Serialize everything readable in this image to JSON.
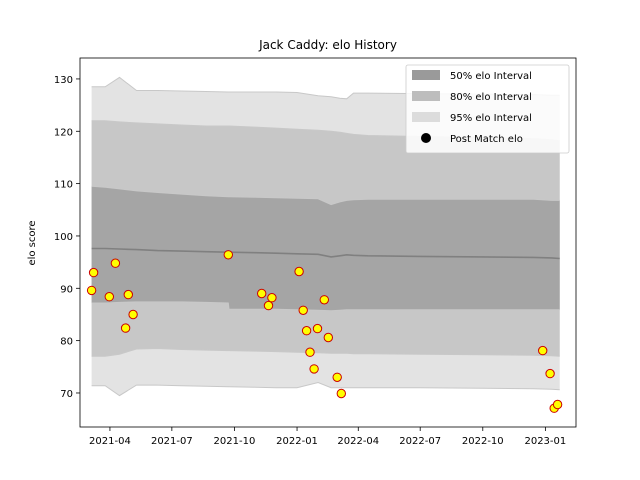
{
  "chart_data": {
    "type": "scatter",
    "title": "Jack Caddy: elo History",
    "xlabel": "",
    "ylabel": "elo score",
    "x_range": [
      "2021-02-16",
      "2023-02-15"
    ],
    "ylim": [
      63.5,
      134
    ],
    "y_ticks": [
      70,
      80,
      90,
      100,
      110,
      120,
      130
    ],
    "x_ticks": [
      "2021-04",
      "2021-07",
      "2021-10",
      "2022-01",
      "2022-04",
      "2022-07",
      "2022-10",
      "2023-01"
    ],
    "grid": false,
    "legend_position": "top-right",
    "legend": [
      "50% elo Interval",
      "80% elo Interval",
      "95% elo Interval",
      "Post Match elo"
    ],
    "colors": {
      "band50": "#9a9a9a",
      "band80": "#bdbdbd",
      "band95": "#dcdcdc",
      "mean_line": "#808080",
      "marker_face": "#ffff00",
      "marker_edge": "#cc0000"
    },
    "intervals": {
      "dates": [
        "2021-03-05",
        "2021-03-25",
        "2021-04-15",
        "2021-05-10",
        "2021-06-10",
        "2021-07-15",
        "2021-08-20",
        "2021-09-22",
        "2021-09-23",
        "2021-11-01",
        "2021-12-01",
        "2022-01-01",
        "2022-02-01",
        "2022-02-20",
        "2022-03-05",
        "2022-03-15",
        "2022-03-25",
        "2022-04-15",
        "2022-07-01",
        "2022-10-01",
        "2022-12-15",
        "2023-01-10",
        "2023-01-22"
      ],
      "mean": [
        97.6,
        97.6,
        97.5,
        97.4,
        97.2,
        97.1,
        97.0,
        96.9,
        96.9,
        96.8,
        96.7,
        96.6,
        96.5,
        96.0,
        96.2,
        96.4,
        96.3,
        96.2,
        96.1,
        96.0,
        95.9,
        95.8,
        95.7
      ],
      "lo50": [
        87.2,
        87.2,
        87.3,
        87.4,
        87.4,
        87.4,
        87.3,
        87.2,
        86.0,
        86.0,
        86.0,
        85.9,
        85.8,
        85.7,
        85.8,
        85.9,
        85.9,
        85.9,
        85.9,
        85.9,
        85.9,
        85.9,
        85.9
      ],
      "hi50": [
        109.5,
        109.3,
        109.0,
        108.6,
        108.3,
        108.0,
        107.7,
        107.5,
        107.5,
        107.4,
        107.3,
        107.2,
        107.1,
        106.0,
        106.5,
        106.8,
        106.9,
        107.0,
        107.0,
        107.0,
        107.0,
        106.8,
        106.8
      ],
      "lo80": [
        77.0,
        77.0,
        77.4,
        78.4,
        78.5,
        78.3,
        78.2,
        78.1,
        78.1,
        78.0,
        77.9,
        77.8,
        77.7,
        77.6,
        77.6,
        77.6,
        77.5,
        77.5,
        77.4,
        77.3,
        77.2,
        77.1,
        77.0
      ],
      "hi80": [
        122.0,
        122.0,
        121.8,
        121.6,
        121.4,
        121.2,
        121.0,
        121.0,
        121.0,
        120.8,
        120.6,
        120.4,
        120.2,
        120.0,
        119.8,
        119.6,
        119.4,
        119.2,
        119.0,
        118.8,
        118.6,
        118.4,
        118.2
      ],
      "lo95": [
        71.4,
        71.4,
        69.5,
        71.5,
        71.5,
        71.4,
        71.3,
        71.2,
        71.2,
        71.1,
        71.0,
        71.0,
        72.0,
        71.0,
        71.0,
        71.0,
        71.0,
        71.0,
        71.0,
        70.9,
        70.8,
        70.7,
        70.6
      ],
      "hi95": [
        128.5,
        128.5,
        130.3,
        127.8,
        127.8,
        127.7,
        127.6,
        127.5,
        127.5,
        127.5,
        127.5,
        127.4,
        126.8,
        126.6,
        126.3,
        126.2,
        127.3,
        127.3,
        127.2,
        127.1,
        127.0,
        126.9,
        126.9
      ]
    },
    "post_match": [
      {
        "x": "2021-03-05",
        "y": 89.6
      },
      {
        "x": "2021-03-08",
        "y": 93.0
      },
      {
        "x": "2021-03-31",
        "y": 88.4
      },
      {
        "x": "2021-04-09",
        "y": 94.8
      },
      {
        "x": "2021-04-24",
        "y": 82.4
      },
      {
        "x": "2021-04-28",
        "y": 88.8
      },
      {
        "x": "2021-05-05",
        "y": 85.0
      },
      {
        "x": "2021-09-22",
        "y": 96.4
      },
      {
        "x": "2021-11-10",
        "y": 89.0
      },
      {
        "x": "2021-11-20",
        "y": 86.7
      },
      {
        "x": "2021-11-25",
        "y": 88.2
      },
      {
        "x": "2022-01-04",
        "y": 93.2
      },
      {
        "x": "2022-01-10",
        "y": 85.8
      },
      {
        "x": "2022-01-15",
        "y": 81.9
      },
      {
        "x": "2022-01-20",
        "y": 77.8
      },
      {
        "x": "2022-01-26",
        "y": 74.6
      },
      {
        "x": "2022-01-31",
        "y": 82.3
      },
      {
        "x": "2022-02-10",
        "y": 87.8
      },
      {
        "x": "2022-02-16",
        "y": 80.6
      },
      {
        "x": "2022-03-01",
        "y": 73.0
      },
      {
        "x": "2022-03-07",
        "y": 69.9
      },
      {
        "x": "2022-12-28",
        "y": 78.1
      },
      {
        "x": "2023-01-08",
        "y": 73.7
      },
      {
        "x": "2023-01-14",
        "y": 67.1
      },
      {
        "x": "2023-01-19",
        "y": 67.8
      }
    ]
  }
}
